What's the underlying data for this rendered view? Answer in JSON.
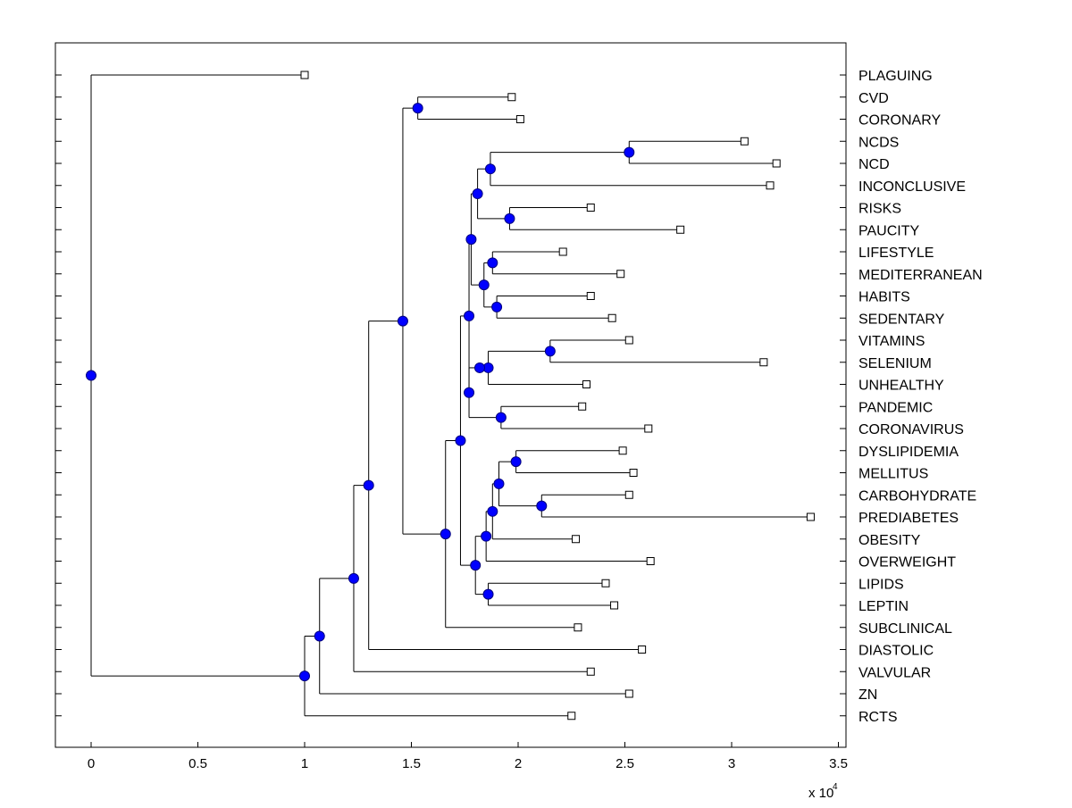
{
  "chart_data": {
    "type": "dendrogram",
    "orientation": "horizontal",
    "xlabel": "",
    "ylabel": "",
    "x_scale_label": "x 10",
    "x_scale_exponent": "4",
    "xlim": [
      -0.17,
      3.52
    ],
    "xticks": [
      0,
      0.5,
      1,
      1.5,
      2,
      2.5,
      3,
      3.5
    ],
    "xtick_labels": [
      "0",
      "0.5",
      "1",
      "1.5",
      "2",
      "2.5",
      "3",
      "3.5"
    ],
    "leaf_order": [
      "PLAGUING",
      "CVD",
      "CORONARY",
      "NCDS",
      "NCD",
      "INCONCLUSIVE",
      "RISKS",
      "PAUCITY",
      "LIFESTYLE",
      "MEDITERRANEAN",
      "HABITS",
      "SEDENTARY",
      "VITAMINS",
      "SELENIUM",
      "UNHEALTHY",
      "PANDEMIC",
      "CORONAVIRUS",
      "DYSLIPIDEMIA",
      "MELLITUS",
      "CARBOHYDRATE",
      "PREDIABETES",
      "OBESITY",
      "OVERWEIGHT",
      "LIPIDS",
      "LEPTIN",
      "SUBCLINICAL",
      "DIASTOLIC",
      "VALVULAR",
      "ZN",
      "RCTS"
    ],
    "leaf_values": {
      "PLAGUING": 1.0,
      "CVD": 1.97,
      "CORONARY": 2.01,
      "NCDS": 3.06,
      "NCD": 3.21,
      "INCONCLUSIVE": 3.18,
      "RISKS": 2.34,
      "PAUCITY": 2.76,
      "LIFESTYLE": 2.21,
      "MEDITERRANEAN": 2.48,
      "HABITS": 2.34,
      "SEDENTARY": 2.44,
      "VITAMINS": 2.52,
      "SELENIUM": 3.15,
      "UNHEALTHY": 2.32,
      "PANDEMIC": 2.3,
      "CORONAVIRUS": 2.61,
      "DYSLIPIDEMIA": 2.49,
      "MELLITUS": 2.54,
      "CARBOHYDRATE": 2.52,
      "PREDIABETES": 3.37,
      "OBESITY": 2.27,
      "OVERWEIGHT": 2.62,
      "LIPIDS": 2.41,
      "LEPTIN": 2.45,
      "SUBCLINICAL": 2.28,
      "DIASTOLIC": 2.58,
      "VALVULAR": 2.34,
      "ZN": 2.52,
      "RCTS": 2.25
    },
    "tree": {
      "name": "root",
      "x": 0.0,
      "children": [
        {
          "leaf": "PLAGUING"
        },
        {
          "name": "n_rcts",
          "x": 1.0,
          "children": [
            {
              "name": "n_zn",
              "x": 1.07,
              "children": [
                {
                  "name": "n_valv",
                  "x": 1.23,
                  "children": [
                    {
                      "name": "n_diast",
                      "x": 1.3,
                      "children": [
                        {
                          "name": "n_main",
                          "x": 1.46,
                          "children": [
                            {
                              "name": "n_cvd",
                              "x": 1.53,
                              "children": [
                                {
                                  "leaf": "CVD"
                                },
                                {
                                  "leaf": "CORONARY"
                                }
                              ]
                            },
                            {
                              "name": "n_sub",
                              "x": 1.66,
                              "children": [
                                {
                                  "name": "n_173",
                                  "x": 1.73,
                                  "children": [
                                    {
                                      "name": "n_177",
                                      "x": 1.77,
                                      "children": [
                                        {
                                          "name": "n_178",
                                          "x": 1.78,
                                          "children": [
                                            {
                                              "name": "n_181",
                                              "x": 1.81,
                                              "children": [
                                                {
                                                  "name": "n_187",
                                                  "x": 1.87,
                                                  "children": [
                                                    {
                                                      "name": "n_252",
                                                      "x": 2.52,
                                                      "children": [
                                                        {
                                                          "leaf": "NCDS"
                                                        },
                                                        {
                                                          "leaf": "NCD"
                                                        }
                                                      ]
                                                    },
                                                    {
                                                      "leaf": "INCONCLUSIVE"
                                                    }
                                                  ]
                                                },
                                                {
                                                  "name": "n_196",
                                                  "x": 1.96,
                                                  "children": [
                                                    {
                                                      "leaf": "RISKS"
                                                    },
                                                    {
                                                      "leaf": "PAUCITY"
                                                    }
                                                  ]
                                                }
                                              ]
                                            },
                                            {
                                              "name": "n_184",
                                              "x": 1.84,
                                              "children": [
                                                {
                                                  "name": "n_188",
                                                  "x": 1.88,
                                                  "children": [
                                                    {
                                                      "leaf": "LIFESTYLE"
                                                    },
                                                    {
                                                      "leaf": "MEDITERRANEAN"
                                                    }
                                                  ]
                                                },
                                                {
                                                  "name": "n_190",
                                                  "x": 1.9,
                                                  "children": [
                                                    {
                                                      "leaf": "HABITS"
                                                    },
                                                    {
                                                      "leaf": "SEDENTARY"
                                                    }
                                                  ]
                                                }
                                              ]
                                            }
                                          ]
                                        },
                                        {
                                          "name": "n_177b",
                                          "x": 1.77,
                                          "children": [
                                            {
                                              "name": "n_182",
                                              "x": 1.82,
                                              "children": [
                                                {
                                                  "name": "n_186",
                                                  "x": 1.86,
                                                  "children": [
                                                    {
                                                      "name": "n_215",
                                                      "x": 2.15,
                                                      "children": [
                                                        {
                                                          "leaf": "VITAMINS"
                                                        },
                                                        {
                                                          "leaf": "SELENIUM"
                                                        }
                                                      ]
                                                    },
                                                    {
                                                      "leaf": "UNHEALTHY"
                                                    }
                                                  ]
                                                }
                                              ]
                                            },
                                            {
                                              "name": "n_192",
                                              "x": 1.92,
                                              "children": [
                                                {
                                                  "leaf": "PANDEMIC"
                                                },
                                                {
                                                  "leaf": "CORONAVIRUS"
                                                }
                                              ]
                                            }
                                          ]
                                        }
                                      ]
                                    },
                                    {
                                      "name": "n_180",
                                      "x": 1.8,
                                      "children": [
                                        {
                                          "name": "n_185",
                                          "x": 1.85,
                                          "children": [
                                            {
                                              "name": "n_188b",
                                              "x": 1.88,
                                              "children": [
                                                {
                                                  "name": "n_191",
                                                  "x": 1.91,
                                                  "children": [
                                                    {
                                                      "name": "n_199",
                                                      "x": 1.99,
                                                      "children": [
                                                        {
                                                          "leaf": "DYSLIPIDEMIA"
                                                        },
                                                        {
                                                          "leaf": "MELLITUS"
                                                        }
                                                      ]
                                                    },
                                                    {
                                                      "name": "n_211",
                                                      "x": 2.11,
                                                      "children": [
                                                        {
                                                          "leaf": "CARBOHYDRATE"
                                                        },
                                                        {
                                                          "leaf": "PREDIABETES"
                                                        }
                                                      ]
                                                    }
                                                  ]
                                                },
                                                {
                                                  "leaf": "OBESITY"
                                                }
                                              ]
                                            },
                                            {
                                              "leaf": "OVERWEIGHT"
                                            }
                                          ]
                                        },
                                        {
                                          "name": "n_186b",
                                          "x": 1.86,
                                          "children": [
                                            {
                                              "leaf": "LIPIDS"
                                            },
                                            {
                                              "leaf": "LEPTIN"
                                            }
                                          ]
                                        }
                                      ]
                                    }
                                  ]
                                },
                                {
                                  "leaf": "SUBCLINICAL"
                                }
                              ]
                            }
                          ]
                        },
                        {
                          "leaf": "DIASTOLIC"
                        }
                      ]
                    },
                    {
                      "leaf": "VALVULAR"
                    }
                  ]
                },
                {
                  "leaf": "ZN"
                }
              ]
            },
            {
              "leaf": "RCTS"
            }
          ]
        }
      ]
    }
  },
  "style": {
    "line_color": "#000000",
    "node_fill": "#0000ff",
    "node_stroke": "#000080",
    "leaf_marker_fill": "#ffffff",
    "leaf_marker_stroke": "#000000"
  }
}
